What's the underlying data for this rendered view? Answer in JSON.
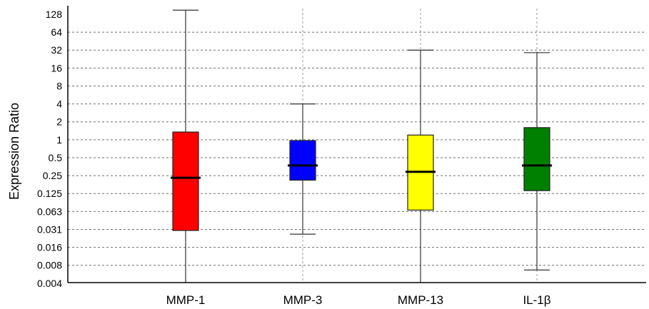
{
  "chart_data": {
    "type": "box",
    "title": "",
    "xlabel": "",
    "ylabel": "Expression Ratio",
    "yscale": "log2",
    "ylim": [
      0.004,
      128
    ],
    "yticks": [
      "128",
      "64",
      "32",
      "16",
      "8",
      "4",
      "2",
      "1",
      "0.5",
      "0.25",
      "0.125",
      "0.063",
      "0.031",
      "0.016",
      "0.008",
      "0.004"
    ],
    "grid": true,
    "categories": [
      "MMP-1",
      "MMP-3",
      "MMP-13",
      "IL-1β"
    ],
    "series": [
      {
        "name": "MMP-1",
        "color": "#ff0000",
        "whisker_low": 0.004,
        "q1": 0.03,
        "median": 0.23,
        "q3": 1.35,
        "whisker_high": 150
      },
      {
        "name": "MMP-3",
        "color": "#0000ff",
        "whisker_low": 0.026,
        "q1": 0.21,
        "median": 0.37,
        "q3": 0.97,
        "whisker_high": 4.0
      },
      {
        "name": "MMP-13",
        "color": "#ffff00",
        "whisker_low": 0.004,
        "q1": 0.066,
        "median": 0.29,
        "q3": 1.2,
        "whisker_high": 32
      },
      {
        "name": "IL-1β",
        "color": "#008000",
        "whisker_low": 0.0065,
        "q1": 0.14,
        "median": 0.37,
        "q3": 1.6,
        "whisker_high": 29
      }
    ]
  }
}
